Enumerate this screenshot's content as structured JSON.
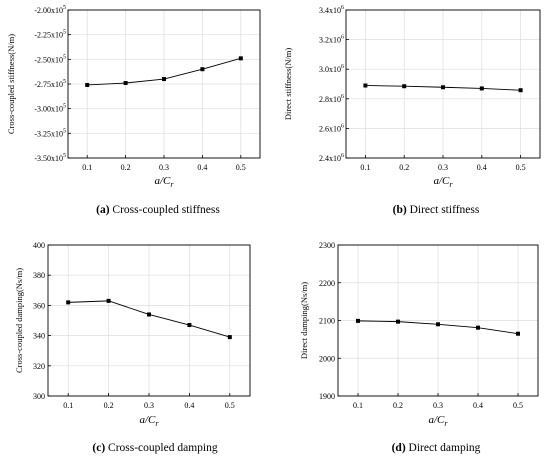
{
  "chart_data": [
    {
      "id": "a",
      "type": "line",
      "xlabel_main": "a/C",
      "xlabel_sub": "r",
      "ylabel": "Cross-coupled stiffness(N/m)",
      "x": [
        0.1,
        0.2,
        0.3,
        0.4,
        0.5
      ],
      "y": [
        -276000,
        -274000,
        -270000,
        -260000,
        -249000
      ],
      "xlim": [
        0.05,
        0.55
      ],
      "ylim": [
        -350000,
        -200000
      ],
      "xticks": [
        0.1,
        0.2,
        0.3,
        0.4,
        0.5
      ],
      "xtick_labels": [
        "0.1",
        "0.2",
        "0.3",
        "0.4",
        "0.5"
      ],
      "yticks": [
        -350000,
        -325000,
        -300000,
        -275000,
        -250000,
        -225000,
        -200000
      ],
      "ytick_labels": [
        "-3.50x10",
        "-3.25x10",
        "-3.00x10",
        "-2.75x10",
        "-2.50x10",
        "-2.25x10",
        "-2.00x10"
      ],
      "ytick_exp": "5",
      "grid": true,
      "caption_label": "(a)",
      "caption_text": " Cross-coupled stiffness"
    },
    {
      "id": "b",
      "type": "line",
      "xlabel_main": "a/C",
      "xlabel_sub": "r",
      "ylabel": "Direct stiffness(N/m)",
      "x": [
        0.1,
        0.2,
        0.3,
        0.4,
        0.5
      ],
      "y": [
        2890000,
        2885000,
        2878000,
        2870000,
        2858000
      ],
      "xlim": [
        0.05,
        0.55
      ],
      "ylim": [
        2400000,
        3400000
      ],
      "xticks": [
        0.1,
        0.2,
        0.3,
        0.4,
        0.5
      ],
      "xtick_labels": [
        "0.1",
        "0.2",
        "0.3",
        "0.4",
        "0.5"
      ],
      "yticks": [
        2400000,
        2600000,
        2800000,
        3000000,
        3200000,
        3400000
      ],
      "ytick_labels": [
        "2.4x10",
        "2.6x10",
        "2.8x10",
        "3.0x10",
        "3.2x10",
        "3.4x10"
      ],
      "ytick_exp": "6",
      "grid": true,
      "caption_label": "(b)",
      "caption_text": " Direct stiffness"
    },
    {
      "id": "c",
      "type": "line",
      "xlabel_main": "a/C",
      "xlabel_sub": "r",
      "ylabel": "Cross-coupled damping(Ns/m)",
      "x": [
        0.1,
        0.2,
        0.3,
        0.4,
        0.5
      ],
      "y": [
        362,
        363,
        354,
        347,
        339
      ],
      "xlim": [
        0.05,
        0.55
      ],
      "ylim": [
        300,
        400
      ],
      "xticks": [
        0.1,
        0.2,
        0.3,
        0.4,
        0.5
      ],
      "xtick_labels": [
        "0.1",
        "0.2",
        "0.3",
        "0.4",
        "0.5"
      ],
      "yticks": [
        300,
        320,
        340,
        360,
        380,
        400
      ],
      "ytick_labels": [
        "300",
        "320",
        "340",
        "360",
        "380",
        "400"
      ],
      "ytick_exp": "",
      "grid": true,
      "caption_label": "(c)",
      "caption_text": " Cross-coupled damping"
    },
    {
      "id": "d",
      "type": "line",
      "xlabel_main": "a/C",
      "xlabel_sub": "r",
      "ylabel": "Direct damping(Ns/m)",
      "x": [
        0.1,
        0.2,
        0.3,
        0.4,
        0.5
      ],
      "y": [
        2099,
        2097,
        2090,
        2081,
        2065
      ],
      "xlim": [
        0.05,
        0.55
      ],
      "ylim": [
        1900,
        2300
      ],
      "xticks": [
        0.1,
        0.2,
        0.3,
        0.4,
        0.5
      ],
      "xtick_labels": [
        "0.1",
        "0.2",
        "0.3",
        "0.4",
        "0.5"
      ],
      "yticks": [
        1900,
        2000,
        2100,
        2200,
        2300
      ],
      "ytick_labels": [
        "1900",
        "2000",
        "2100",
        "2200",
        "2300"
      ],
      "ytick_exp": "",
      "grid": true,
      "caption_label": "(d)",
      "caption_text": " Direct damping"
    }
  ]
}
